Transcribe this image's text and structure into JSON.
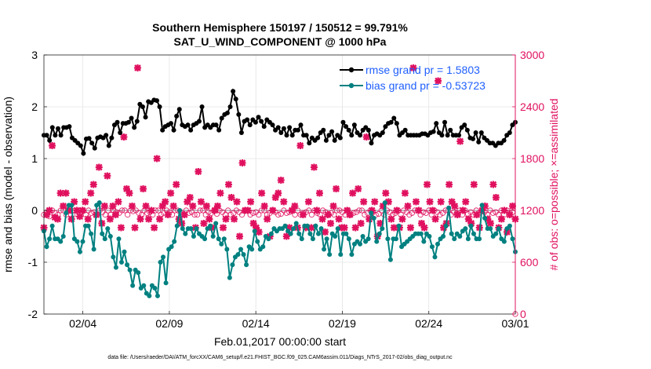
{
  "chart_data": {
    "type": "line",
    "title_line1": "Southern Hemisphere 150197 / 150512 = 99.791%",
    "title_line2": "SAT_U_WIND_COMPONENT @ 1000 hPa",
    "xlabel": "Feb.01,2017 00:00:00 start",
    "ylabel_left": "rmse and bias (model - observation)",
    "ylabel_right": "# of obs: o=possible; ×=assimilated",
    "footnote": "data file: /Users/raeder/DAI/ATM_forcXX/CAM6_setup/f.e21.FHIST_BGC.f09_025.CAM6assim.011/Diags_NTrS_2017-02/obs_diag_output.nc",
    "x_range": [
      0.75,
      28.0
    ],
    "ylim_left": [
      -2,
      3
    ],
    "ylim_right": [
      0,
      3000
    ],
    "x_ticks": [
      {
        "value": 3.0,
        "label": "02/04"
      },
      {
        "value": 8.0,
        "label": "02/09"
      },
      {
        "value": 13.0,
        "label": "02/14"
      },
      {
        "value": 18.0,
        "label": "02/19"
      },
      {
        "value": 23.0,
        "label": "02/24"
      },
      {
        "value": 28.0,
        "label": "03/01"
      }
    ],
    "y_ticks_left": [
      "-2",
      "-1",
      "0",
      "1",
      "2",
      "3"
    ],
    "y_ticks_right": [
      "0",
      "600",
      "1200",
      "1800",
      "2400",
      "3000"
    ],
    "legend": [
      {
        "label": "rmse grand pr = 1.5803",
        "color": "#000000"
      },
      {
        "label": "bias grand pr = -0.53723",
        "color": "#008080"
      }
    ],
    "colors": {
      "rmse": "#000000",
      "bias": "#008080",
      "obs": "#e0115f",
      "zero_line": "#b0a8b0"
    },
    "series": [
      {
        "name": "rmse",
        "values": [
          1.45,
          1.45,
          1.35,
          1.6,
          1.45,
          1.58,
          1.45,
          1.6,
          1.6,
          1.62,
          1.4,
          1.35,
          1.3,
          1.25,
          1.1,
          1.38,
          1.39,
          1.3,
          1.2,
          1.4,
          1.42,
          1.4,
          1.45,
          1.25,
          1.4,
          1.65,
          1.7,
          1.5,
          1.68,
          1.68,
          1.7,
          1.78,
          1.6,
          1.72,
          2.05,
          2.0,
          1.8,
          2.1,
          2.08,
          2.13,
          2.12,
          2.0,
          1.55,
          1.62,
          1.65,
          1.68,
          1.55,
          1.82,
          1.95,
          1.65,
          1.62,
          1.65,
          1.55,
          1.65,
          1.68,
          1.72,
          2.0,
          1.6,
          1.65,
          1.6,
          1.65,
          1.65,
          1.55,
          1.78,
          1.85,
          1.88,
          2.0,
          2.3,
          2.15,
          1.85,
          1.5,
          1.72,
          1.75,
          1.65,
          1.75,
          1.7,
          1.8,
          1.72,
          1.62,
          1.75,
          1.7,
          1.65,
          1.55,
          1.6,
          1.5,
          1.58,
          1.45,
          1.6,
          1.45,
          1.55,
          1.55,
          1.65,
          1.45,
          1.45,
          1.3,
          1.4,
          1.35,
          1.4,
          1.5,
          1.55,
          1.35,
          1.45,
          1.52,
          1.35,
          1.45,
          1.4,
          1.7,
          1.62,
          1.55,
          1.45,
          1.65,
          1.5,
          1.45,
          1.55,
          1.6,
          1.55,
          1.3,
          1.45,
          1.48,
          1.45,
          1.5,
          1.62,
          1.68,
          1.7,
          1.78,
          1.68,
          1.45,
          1.5,
          1.55,
          1.45,
          1.45,
          1.45,
          1.45,
          1.45,
          1.48,
          1.48,
          1.45,
          1.5,
          1.52,
          1.68,
          1.5,
          1.45,
          1.7,
          1.45,
          1.55,
          1.45,
          1.45,
          1.45,
          1.6,
          1.65,
          1.55,
          1.4,
          1.38,
          1.5,
          1.32,
          1.5,
          1.4,
          1.35,
          1.3,
          1.3,
          1.25,
          1.3,
          1.3,
          1.35,
          1.45,
          1.5,
          1.65,
          1.7
        ]
      },
      {
        "name": "bias",
        "values": [
          -0.4,
          -0.7,
          -0.55,
          -0.3,
          -0.55,
          -0.55,
          -0.6,
          -0.5,
          -0.05,
          0.1,
          0.1,
          -0.55,
          -0.6,
          -0.8,
          -0.6,
          -0.3,
          -0.3,
          -0.45,
          -0.75,
          0.1,
          0.15,
          -0.45,
          -0.55,
          -0.35,
          -0.5,
          -0.9,
          -1.1,
          -0.55,
          -1.0,
          -0.8,
          -1.05,
          -1.15,
          -1.45,
          -1.15,
          -1.2,
          -1.5,
          -1.45,
          -1.6,
          -1.65,
          -1.45,
          -1.5,
          -1.65,
          -1.0,
          -0.9,
          -1.4,
          -0.75,
          -0.7,
          -0.6,
          -0.3,
          0.0,
          -0.35,
          -0.45,
          -0.35,
          -0.35,
          -0.5,
          -0.35,
          -0.45,
          -0.5,
          -0.55,
          -0.35,
          -0.3,
          -0.5,
          -0.25,
          -0.55,
          -0.65,
          -0.55,
          -0.75,
          -1.3,
          -1.05,
          -0.9,
          -0.85,
          -0.75,
          -0.85,
          -1.05,
          -0.7,
          -0.75,
          -0.4,
          -0.6,
          -0.75,
          -0.7,
          -0.5,
          -0.55,
          -0.45,
          -0.35,
          -0.4,
          -0.35,
          -0.35,
          -0.3,
          -0.4,
          -0.45,
          -0.35,
          -0.25,
          -0.45,
          -0.55,
          -0.3,
          -0.3,
          -0.45,
          -0.55,
          -0.3,
          -0.45,
          -0.35,
          -0.75,
          -0.55,
          -0.85,
          -0.45,
          -0.5,
          -0.35,
          -0.85,
          -0.45,
          -0.45,
          -0.55,
          -0.85,
          -0.65,
          -0.6,
          -0.65,
          -0.5,
          -0.6,
          -0.55,
          -0.05,
          -0.15,
          -0.6,
          -0.45,
          -0.35,
          0.15,
          -0.55,
          -0.95,
          -0.55,
          -0.55,
          -0.3,
          -0.7,
          -0.65,
          -0.6,
          -0.55,
          -0.5,
          -0.45,
          -0.45,
          -0.45,
          -0.6,
          -0.45,
          -0.5,
          -0.7,
          -0.9,
          -0.65,
          -0.55,
          -0.5,
          -0.3,
          0.05,
          -0.45,
          -0.55,
          -0.45,
          -0.5,
          -0.4,
          -0.35,
          -0.55,
          -0.3,
          -0.45,
          -0.55,
          -0.55,
          0.1,
          -0.15,
          -0.35,
          -0.35,
          -0.5,
          -0.45,
          -0.35,
          -0.55,
          -0.6,
          -0.35,
          -0.3,
          -0.55,
          -0.8
        ]
      },
      {
        "name": "obs_possible",
        "values": [
          1150,
          1180,
          1130,
          1200,
          1170,
          1150,
          1200,
          1200,
          1150,
          1200,
          1190,
          1200,
          1150,
          1160,
          1200,
          1150,
          1200,
          1170,
          1180,
          1150,
          1200,
          1180,
          1150,
          1200,
          1150,
          1200,
          1180,
          1170,
          1200,
          1200,
          1150,
          1200,
          1190,
          1200,
          1170,
          1150,
          1200,
          1170,
          1180,
          1150,
          1200,
          1200,
          1150,
          1170,
          1200,
          1180,
          1150,
          1200,
          1200,
          1180,
          1150,
          1200,
          1170,
          1180,
          1150,
          1150,
          1200,
          1200,
          1150,
          1180,
          1170,
          1200,
          1160,
          1200,
          1180,
          1150,
          1200,
          1150,
          1170,
          1200,
          1180,
          1150,
          1200,
          1200,
          1150,
          1170,
          1180,
          1150,
          1200,
          1200,
          1150,
          1170,
          1200,
          1180,
          1150,
          1160,
          1200,
          1170,
          1180,
          1200,
          1150,
          1200,
          1150,
          1170,
          1180,
          1200,
          1150,
          1200,
          1170,
          1150,
          1200,
          1180,
          1150,
          1170,
          1150,
          1200,
          1200,
          1180,
          1150,
          1200,
          1150,
          1170,
          1180,
          1200,
          1200,
          1150,
          1170,
          1200,
          1180,
          1150,
          1160,
          1200,
          1150,
          1200,
          1180,
          1150,
          1170,
          1200,
          1150,
          1200,
          1180,
          1150,
          1170,
          1200,
          1200,
          1150,
          1180,
          1170,
          1200,
          1150,
          1200,
          1180,
          1150,
          1170,
          1200,
          1200,
          1150,
          1180,
          1170,
          1200,
          1150,
          1200,
          1160,
          1180,
          1150,
          1200,
          1170,
          1200,
          1180,
          1150,
          1200,
          1170,
          1180,
          1150,
          1200,
          1150,
          1200,
          1170,
          1180,
          0
        ]
      },
      {
        "name": "obs_assimilated",
        "values": [
          1000,
          1150,
          1200,
          1950,
          1120,
          1100,
          1400,
          1250,
          1400,
          1200,
          1100,
          1300,
          1200,
          1130,
          1200,
          1300,
          1100,
          1400,
          1500,
          1150,
          1700,
          1050,
          1250,
          1600,
          1100,
          1250,
          1150,
          1300,
          1000,
          2050,
          1450,
          1400,
          1250,
          1000,
          2850,
          1100,
          1450,
          1250,
          1100,
          1200,
          1000,
          1800,
          1100,
          1250,
          1300,
          1150,
          1400,
          1250,
          1500,
          1100,
          1050,
          1150,
          1300,
          1350,
          1250,
          1000,
          1650,
          1300,
          1050,
          1250,
          1100,
          1000,
          1200,
          1250,
          1400,
          1000,
          1100,
          1500,
          1350,
          1100,
          1300,
          900,
          1750,
          1200,
          1200,
          1300,
          1050,
          1000,
          950,
          1400,
          1250,
          1100,
          900,
          1200,
          1350,
          1400,
          1550,
          1300,
          900,
          1000,
          1200,
          1250,
          1000,
          1950,
          1150,
          1000,
          1300,
          1000,
          1700,
          1200,
          1400,
          1100,
          950,
          1150,
          1050,
          1250,
          1450,
          1100,
          1000,
          1000,
          1200,
          1150,
          1400,
          1000,
          1450,
          1050,
          1300,
          2050,
          1100,
          1200,
          1300,
          900,
          1050,
          1250,
          1400,
          1300,
          1100,
          1000,
          1200,
          1000,
          1100,
          1400,
          1250,
          1000,
          2850,
          1300,
          1200,
          1050,
          1000,
          1500,
          1300,
          1200,
          1100,
          2700,
          1300,
          1000,
          1050,
          1500,
          1300,
          1250,
          1150,
          2000,
          1200,
          1300,
          1100,
          1050,
          1500,
          1150,
          1000,
          1200,
          1250,
          1100,
          1050,
          1500,
          1350,
          1000,
          1100,
          1200,
          950,
          1150,
          1250,
          1100
        ]
      }
    ]
  }
}
